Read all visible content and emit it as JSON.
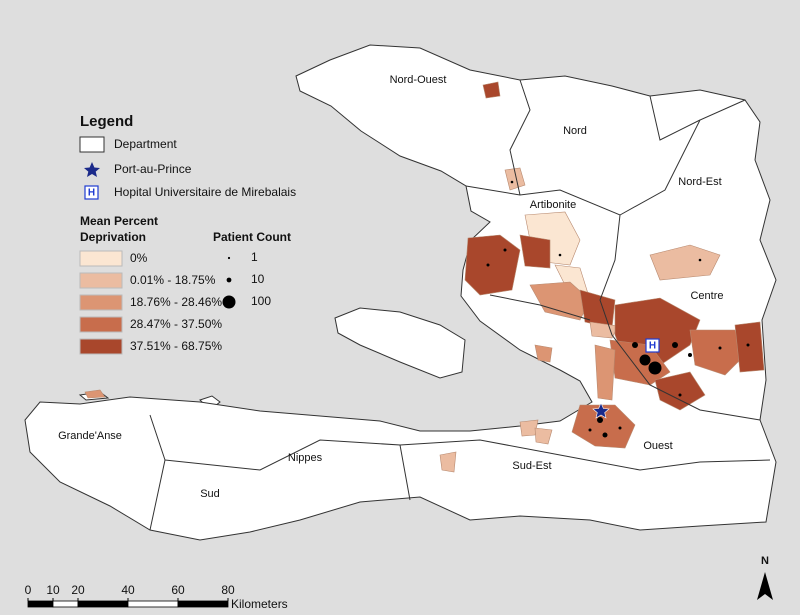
{
  "legend": {
    "title": "Legend",
    "department": "Department",
    "capital": "Port-au-Prince",
    "hospital_icon": "H",
    "hospital": "Hopital Universitaire de Mirebalais"
  },
  "deprivation": {
    "title_lines": [
      "Mean Percent",
      "Deprivation"
    ],
    "classes": [
      {
        "label": "0%",
        "color": "#fbe6d2"
      },
      {
        "label": "0.01% - 18.75%",
        "color": "#ebbca1"
      },
      {
        "label": "18.76% - 28.46%",
        "color": "#dc9573"
      },
      {
        "label": "28.47% - 37.50%",
        "color": "#c86d4c"
      },
      {
        "label": "37.51% - 68.75%",
        "color": "#a9472c"
      }
    ]
  },
  "patient_count": {
    "title": "Patient Count",
    "sizes": [
      1,
      10,
      100
    ]
  },
  "departments": [
    "Nord-Ouest",
    "Nord",
    "Nord-Est",
    "Artibonite",
    "Centre",
    "Ouest",
    "Grande'Anse",
    "Nippes",
    "Sud",
    "Sud-Est"
  ],
  "scale_bar": {
    "ticks": [
      0,
      10,
      20,
      40,
      60,
      80
    ],
    "unit": "Kilometers"
  },
  "north": "N"
}
